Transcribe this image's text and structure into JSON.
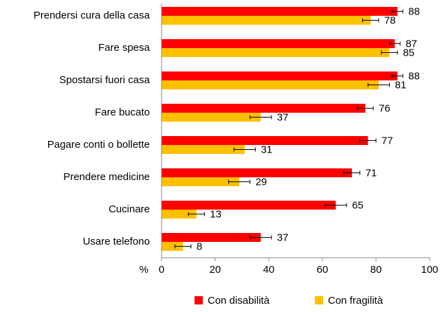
{
  "chart_data": {
    "type": "barh",
    "categories": [
      "Prendersi cura della casa",
      "Fare spesa",
      "Spostarsi fuori casa",
      "Fare bucato",
      "Pagare conti o bollette",
      "Prendere medicine",
      "Cucinare",
      "Usare telefono"
    ],
    "series": [
      {
        "name": "Con disabilità",
        "color": "#ff0000",
        "values": [
          88,
          87,
          88,
          76,
          77,
          71,
          65,
          37
        ],
        "errors": [
          2,
          2,
          2,
          3,
          3,
          3,
          4,
          4
        ]
      },
      {
        "name": "Con fragilità",
        "color": "#ffc000",
        "values": [
          78,
          85,
          81,
          37,
          31,
          29,
          13,
          8
        ],
        "errors": [
          3,
          3,
          4,
          4,
          4,
          4,
          3,
          3
        ]
      }
    ],
    "xlabel": "%",
    "xlim": [
      0,
      100
    ],
    "xticks": [
      0,
      20,
      40,
      60,
      80,
      100
    ],
    "legend": "bottom"
  }
}
